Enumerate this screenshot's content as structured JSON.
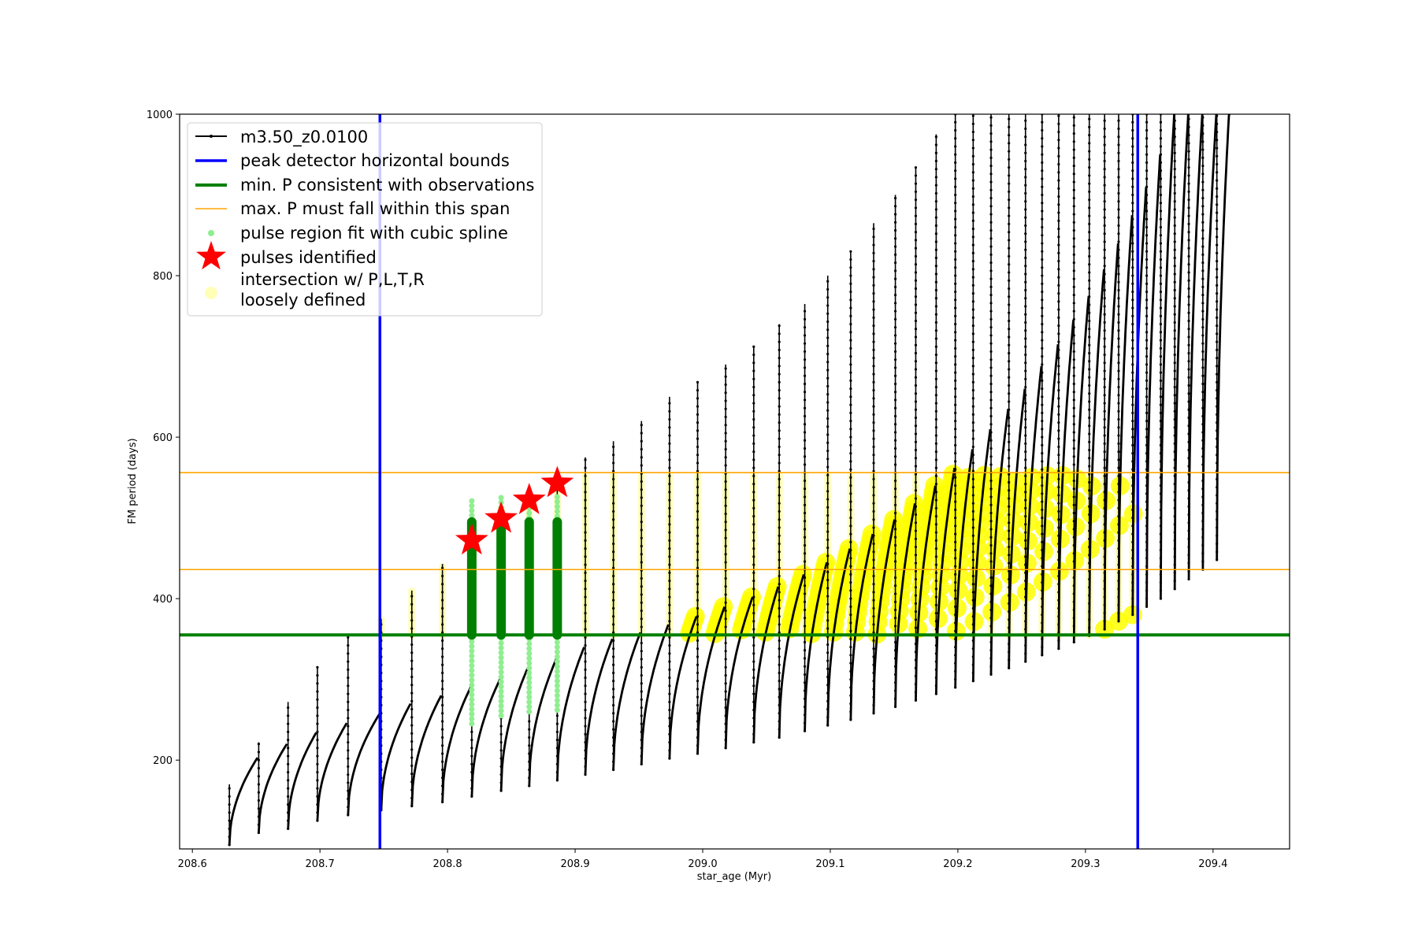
{
  "chart_data": {
    "type": "line",
    "xlabel": "star_age (Myr)",
    "ylabel": "FM period (days)",
    "xlim": [
      208.59,
      209.46
    ],
    "ylim": [
      90,
      1000
    ],
    "x_ticks": [
      208.6,
      208.7,
      208.8,
      208.9,
      209.0,
      209.1,
      209.2,
      209.3,
      209.4
    ],
    "x_tick_labels": [
      "208.6",
      "208.7",
      "208.8",
      "208.9",
      "209.0",
      "209.1",
      "209.2",
      "209.3",
      "209.4"
    ],
    "y_ticks": [
      200,
      400,
      600,
      800,
      1000
    ],
    "y_tick_labels": [
      "200",
      "400",
      "600",
      "800",
      "1000"
    ],
    "grid": false,
    "legend_position": "top-left",
    "series": [
      {
        "name": "m3.50_z0.0100",
        "kind": "line-with-point-markers",
        "color": "#000000",
        "description_points": "pulsation period sawtooth; each cycle: sharp spike upward at pulse then recovery",
        "pulses": [
          {
            "x": 208.629,
            "base": 95,
            "spike": 170,
            "top": 178
          },
          {
            "x": 208.652,
            "base": 110,
            "spike": 222,
            "top": 203
          },
          {
            "x": 208.675,
            "base": 115,
            "spike": 272,
            "top": 220
          },
          {
            "x": 208.698,
            "base": 125,
            "spike": 315,
            "top": 234
          },
          {
            "x": 208.722,
            "base": 132,
            "spike": 352,
            "top": 246
          },
          {
            "x": 208.748,
            "base": 138,
            "spike": 375,
            "top": 258
          },
          {
            "x": 208.772,
            "base": 143,
            "spike": 410,
            "top": 270
          },
          {
            "x": 208.796,
            "base": 148,
            "spike": 443,
            "top": 280
          },
          {
            "x": 208.819,
            "base": 155,
            "spike": 472,
            "top": 290
          },
          {
            "x": 208.842,
            "base": 162,
            "spike": 512,
            "top": 300
          },
          {
            "x": 208.864,
            "base": 168,
            "spike": 530,
            "top": 315
          },
          {
            "x": 208.886,
            "base": 175,
            "spike": 548,
            "top": 325
          },
          {
            "x": 208.908,
            "base": 182,
            "spike": 575,
            "top": 340
          },
          {
            "x": 208.93,
            "base": 188,
            "spike": 595,
            "top": 350
          },
          {
            "x": 208.952,
            "base": 195,
            "spike": 620,
            "top": 358
          },
          {
            "x": 208.974,
            "base": 202,
            "spike": 650,
            "top": 368
          },
          {
            "x": 208.996,
            "base": 208,
            "spike": 668,
            "top": 378
          },
          {
            "x": 209.018,
            "base": 215,
            "spike": 690,
            "top": 390
          },
          {
            "x": 209.04,
            "base": 222,
            "spike": 712,
            "top": 402
          },
          {
            "x": 209.06,
            "base": 228,
            "spike": 740,
            "top": 415
          },
          {
            "x": 209.08,
            "base": 236,
            "spike": 765,
            "top": 430
          },
          {
            "x": 209.098,
            "base": 243,
            "spike": 800,
            "top": 445
          },
          {
            "x": 209.116,
            "base": 250,
            "spike": 830,
            "top": 462
          },
          {
            "x": 209.134,
            "base": 258,
            "spike": 865,
            "top": 480
          },
          {
            "x": 209.151,
            "base": 266,
            "spike": 900,
            "top": 498
          },
          {
            "x": 209.167,
            "base": 274,
            "spike": 935,
            "top": 518
          },
          {
            "x": 209.183,
            "base": 282,
            "spike": 975,
            "top": 540
          },
          {
            "x": 209.198,
            "base": 290,
            "spike": 1000,
            "top": 562
          },
          {
            "x": 209.212,
            "base": 298,
            "spike": 1000,
            "top": 585
          },
          {
            "x": 209.226,
            "base": 306,
            "spike": 1000,
            "top": 610
          },
          {
            "x": 209.24,
            "base": 314,
            "spike": 1000,
            "top": 635
          },
          {
            "x": 209.253,
            "base": 322,
            "spike": 1000,
            "top": 660
          },
          {
            "x": 209.266,
            "base": 330,
            "spike": 1000,
            "top": 688
          },
          {
            "x": 209.279,
            "base": 338,
            "spike": 1000,
            "top": 715
          },
          {
            "x": 209.291,
            "base": 346,
            "spike": 1000,
            "top": 745
          },
          {
            "x": 209.303,
            "base": 354,
            "spike": 1000,
            "top": 775
          },
          {
            "x": 209.315,
            "base": 362,
            "spike": 1000,
            "top": 808
          },
          {
            "x": 209.326,
            "base": 372,
            "spike": 1000,
            "top": 840
          },
          {
            "x": 209.337,
            "base": 380,
            "spike": 1000,
            "top": 875
          },
          {
            "x": 209.348,
            "base": 390,
            "spike": 1000,
            "top": 910
          },
          {
            "x": 209.359,
            "base": 400,
            "spike": 1000,
            "top": 950
          },
          {
            "x": 209.37,
            "base": 412,
            "spike": 1000,
            "top": 1000
          },
          {
            "x": 209.381,
            "base": 424,
            "spike": 1000,
            "top": 1000
          },
          {
            "x": 209.392,
            "base": 436,
            "spike": 1000,
            "top": 1000
          },
          {
            "x": 209.403,
            "base": 448,
            "spike": 1000,
            "top": 1000
          }
        ]
      },
      {
        "name": "peak detector horizontal bounds",
        "kind": "vlines",
        "color": "#0000ff",
        "x": [
          208.747,
          209.341
        ]
      },
      {
        "name": "min. P consistent with observations",
        "kind": "hline",
        "color": "#008000",
        "y": 355
      },
      {
        "name": "max. P must fall within this span",
        "kind": "hlines",
        "color": "#ffa500",
        "y": [
          436,
          556
        ]
      },
      {
        "name": "pulse region fit with cubic spline",
        "kind": "scatter",
        "color": "#90ee90",
        "segments": [
          {
            "x": 208.819,
            "y_from": 245,
            "y_to": 525
          },
          {
            "x": 208.842,
            "y_from": 255,
            "y_to": 525
          },
          {
            "x": 208.864,
            "y_from": 260,
            "y_to": 525
          },
          {
            "x": 208.886,
            "y_from": 262,
            "y_to": 530
          }
        ]
      },
      {
        "name": "pulses identified",
        "kind": "scatter-star",
        "color": "#ff0000",
        "x": [
          208.819,
          208.842,
          208.864,
          208.886
        ],
        "y": [
          472,
          499,
          522,
          543
        ]
      },
      {
        "name": "intersection w/ P,L,T,R\nloosely defined",
        "kind": "scatter",
        "color": "#ffff00"
      }
    ],
    "green_highlight_segments": [
      {
        "x": 208.819,
        "y_from": 355,
        "y_to": 495
      },
      {
        "x": 208.842,
        "y_from": 355,
        "y_to": 495
      },
      {
        "x": 208.864,
        "y_from": 355,
        "y_to": 495
      },
      {
        "x": 208.886,
        "y_from": 355,
        "y_to": 495
      }
    ]
  },
  "legend": {
    "items": [
      {
        "label": "m3.50_z0.0100",
        "icon": "black-line-with-point"
      },
      {
        "label": "peak detector horizontal bounds",
        "icon": "blue-line"
      },
      {
        "label": "min. P consistent with observations",
        "icon": "green-line"
      },
      {
        "label": "max. P must fall within this span",
        "icon": "orange-thin-line"
      },
      {
        "label": "pulse region fit with cubic spline",
        "icon": "light-green-dot"
      },
      {
        "label": "pulses identified",
        "icon": "red-star"
      },
      {
        "label": "intersection w/ P,L,T,R",
        "label2": "loosely defined",
        "icon": "light-yellow-dot"
      }
    ]
  }
}
